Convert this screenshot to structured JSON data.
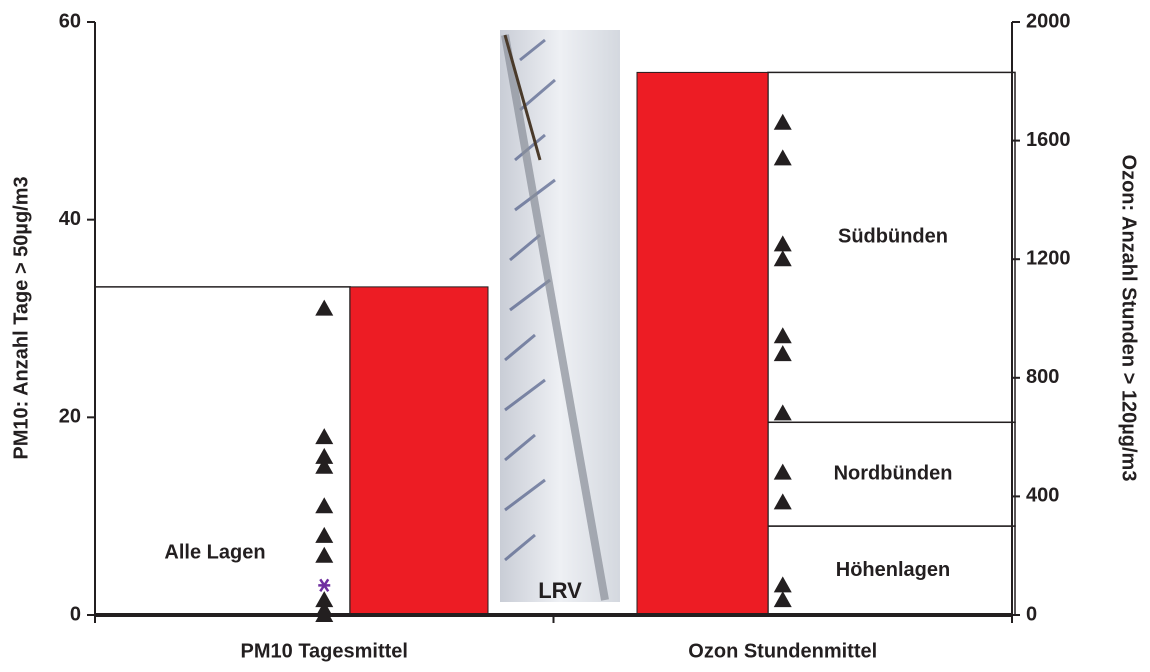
{
  "chart_data": {
    "type": "bar",
    "y_label": "PM10: Anzahl Tage > 50µg/m3",
    "y2_label": "Ozon: Anzahl Stunden > 120µg/m3",
    "categories": [
      "PM10 Tagesmittel",
      "Ozon Stundenmittel"
    ],
    "ylim": [
      0,
      60
    ],
    "yticks": [
      0,
      20,
      40,
      60
    ],
    "y2lim": [
      0,
      2000
    ],
    "y2ticks": [
      0,
      400,
      800,
      1200,
      1600,
      2000
    ],
    "series": [
      {
        "color": "#ed1c24",
        "values": [
          33.2,
          null
        ]
      },
      {
        "color": "#ed1c24",
        "axis": "y2",
        "values": [
          null,
          1830
        ]
      }
    ],
    "markers": [
      {
        "marker": "triangle",
        "color": "#231f20",
        "values": [
          31,
          18,
          16,
          15,
          11,
          8,
          6,
          1.5,
          0.5,
          0
        ]
      },
      {
        "marker": "star",
        "color": "#7030a0",
        "values": [
          3
        ]
      },
      {
        "marker": "triangle",
        "color": "#231f20",
        "axis": "y2",
        "values": [
          1660,
          1540,
          1250,
          1200,
          940,
          880,
          680,
          480,
          380,
          100,
          50
        ]
      }
    ],
    "zones": [
      {
        "label": "Alle Lagen",
        "top": 33.2
      },
      {
        "label": "Höhenlagen",
        "top": 300,
        "axis": "y2"
      },
      {
        "label": "Nordbünden",
        "top": 650,
        "axis": "y2"
      },
      {
        "label": "Südbünden",
        "top": 1830,
        "axis": "y2"
      }
    ],
    "annotations": [
      "LRV"
    ]
  }
}
